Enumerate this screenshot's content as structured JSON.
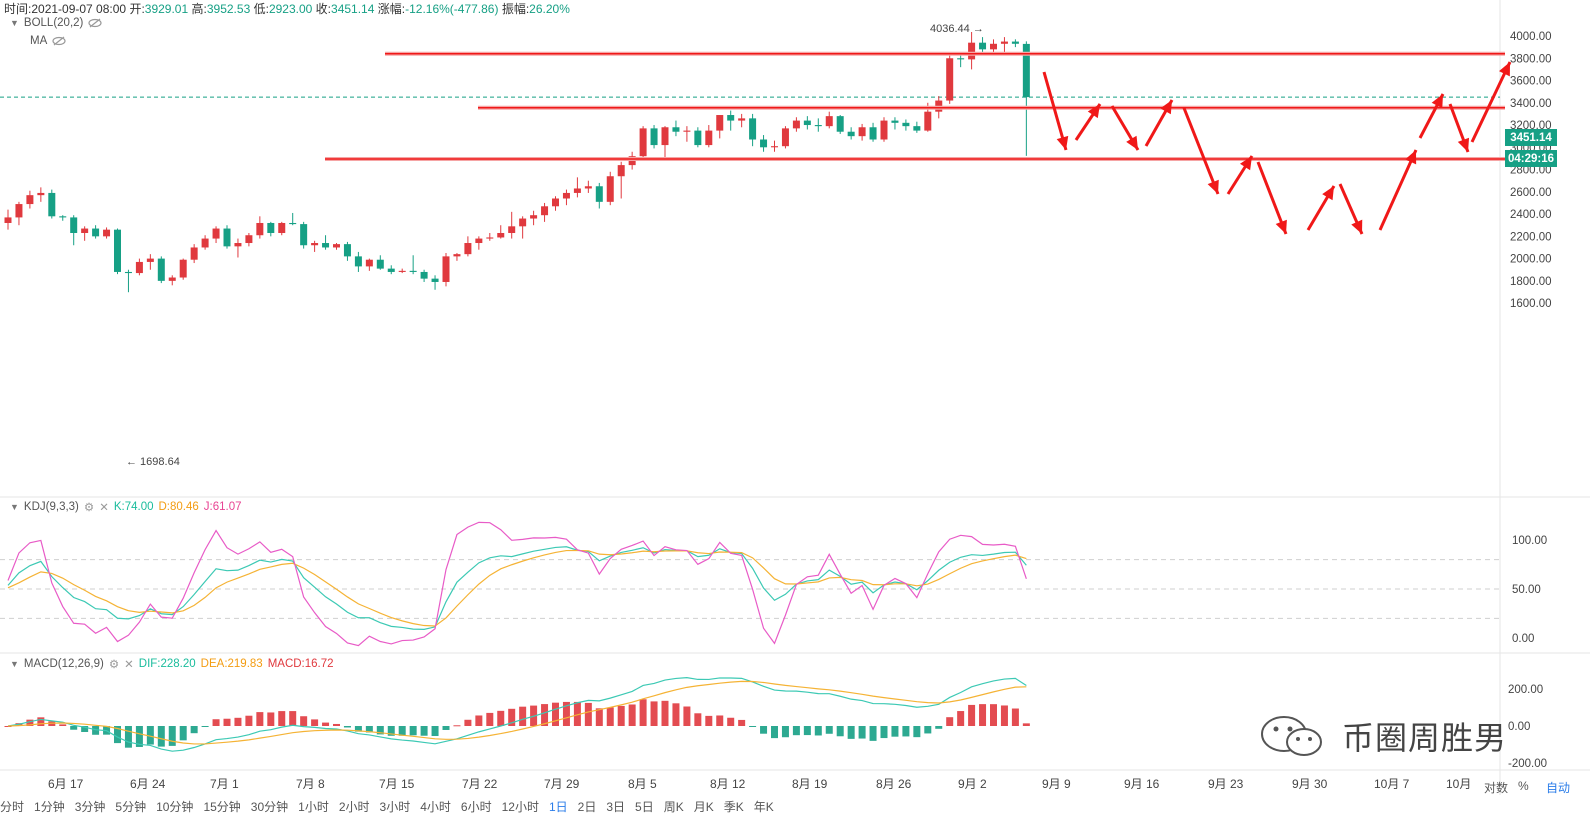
{
  "header": {
    "time_label": "时间:",
    "time_value": "2021-09-07 08:00",
    "open_label": "开:",
    "open_value": "3929.01",
    "high_label": "高:",
    "high_value": "3952.53",
    "low_label": "低:",
    "low_value": "2923.00",
    "close_label": "收:",
    "close_value": "3451.14",
    "change_label": "涨幅:",
    "change_value": "-12.16%(-477.86)",
    "amplitude_label": "振幅:",
    "amplitude_value": "26.20%"
  },
  "indicators": {
    "boll_label": "BOLL(20,2)",
    "ma_label": "MA",
    "kdj_label": "KDJ(9,3,3)",
    "kdj_k": "K:74.00",
    "kdj_d": "D:80.46",
    "kdj_j": "J:61.07",
    "macd_label": "MACD(12,26,9)",
    "macd_dif": "DIF:228.20",
    "macd_dea": "DEA:219.83",
    "macd_val": "MACD:16.72"
  },
  "price_axis": {
    "ticks": [
      "4000.00",
      "3800.00",
      "3600.00",
      "3400.00",
      "3200.00",
      "3000.00",
      "2800.00",
      "2600.00",
      "2400.00",
      "2200.00",
      "2000.00",
      "1800.00",
      "1600.00"
    ],
    "tick_values": [
      4000,
      3800,
      3600,
      3400,
      3200,
      3000,
      2800,
      2600,
      2400,
      2200,
      2000,
      1800,
      1600
    ],
    "current_price": "3451.14",
    "countdown": "04:29:16"
  },
  "kdj_axis": {
    "ticks": [
      "100.00",
      "50.00",
      "0.00"
    ],
    "tick_values": [
      100,
      50,
      0
    ]
  },
  "macd_axis": {
    "ticks": [
      "200.00",
      "0.00",
      "-200.00"
    ],
    "tick_values": [
      200,
      0,
      -200
    ]
  },
  "annotations": {
    "high_marker": "4036.44 →",
    "low_marker": "← 1698.64"
  },
  "date_axis": {
    "labels": [
      "6月 17",
      "6月 24",
      "7月 1",
      "7月 8",
      "7月 15",
      "7月 22",
      "7月 29",
      "8月 5",
      "8月 12",
      "8月 19",
      "8月 26",
      "9月 2",
      "9月 9",
      "9月 16",
      "9月 23",
      "9月 30",
      "10月 7",
      "10月"
    ]
  },
  "bottom_tabs": [
    "分时",
    "1分钟",
    "3分钟",
    "5分钟",
    "10分钟",
    "15分钟",
    "30分钟",
    "1小时",
    "2小时",
    "3小时",
    "4小时",
    "6小时",
    "12小时",
    "1日",
    "2日",
    "3日",
    "5日",
    "周K",
    "月K",
    "季K",
    "年K"
  ],
  "bottom_active_tab": "1日",
  "right_controls": {
    "log": "对数",
    "percent": "%",
    "auto": "自动"
  },
  "watermark": {
    "text": "币圈周胜男"
  },
  "colors": {
    "up": "#e0393e",
    "down": "#16a085",
    "kdj_k": "#3cc9b4",
    "kdj_d": "#f5b335",
    "kdj_j": "#e85bc7",
    "annotation": "#f01818"
  },
  "chart_data": {
    "type": "candlestick",
    "candles": [
      {
        "o": 2320,
        "h": 2440,
        "l": 2260,
        "c": 2370
      },
      {
        "o": 2370,
        "h": 2510,
        "l": 2300,
        "c": 2490
      },
      {
        "o": 2490,
        "h": 2610,
        "l": 2450,
        "c": 2570
      },
      {
        "o": 2570,
        "h": 2640,
        "l": 2510,
        "c": 2590
      },
      {
        "o": 2590,
        "h": 2620,
        "l": 2360,
        "c": 2380
      },
      {
        "o": 2380,
        "h": 2390,
        "l": 2340,
        "c": 2370
      },
      {
        "o": 2370,
        "h": 2390,
        "l": 2120,
        "c": 2230
      },
      {
        "o": 2230,
        "h": 2290,
        "l": 2160,
        "c": 2270
      },
      {
        "o": 2270,
        "h": 2300,
        "l": 2180,
        "c": 2200
      },
      {
        "o": 2200,
        "h": 2280,
        "l": 2180,
        "c": 2260
      },
      {
        "o": 2260,
        "h": 2270,
        "l": 1860,
        "c": 1880
      },
      {
        "o": 1880,
        "h": 1900,
        "l": 1698,
        "c": 1870
      },
      {
        "o": 1870,
        "h": 2000,
        "l": 1850,
        "c": 1970
      },
      {
        "o": 1970,
        "h": 2040,
        "l": 1900,
        "c": 2000
      },
      {
        "o": 2000,
        "h": 2020,
        "l": 1780,
        "c": 1800
      },
      {
        "o": 1800,
        "h": 1850,
        "l": 1760,
        "c": 1830
      },
      {
        "o": 1830,
        "h": 2000,
        "l": 1810,
        "c": 1990
      },
      {
        "o": 1990,
        "h": 2130,
        "l": 1960,
        "c": 2100
      },
      {
        "o": 2100,
        "h": 2210,
        "l": 2080,
        "c": 2180
      },
      {
        "o": 2180,
        "h": 2290,
        "l": 2140,
        "c": 2270
      },
      {
        "o": 2270,
        "h": 2300,
        "l": 2090,
        "c": 2110
      },
      {
        "o": 2110,
        "h": 2180,
        "l": 2010,
        "c": 2140
      },
      {
        "o": 2140,
        "h": 2230,
        "l": 2110,
        "c": 2210
      },
      {
        "o": 2210,
        "h": 2380,
        "l": 2180,
        "c": 2320
      },
      {
        "o": 2320,
        "h": 2330,
        "l": 2200,
        "c": 2230
      },
      {
        "o": 2230,
        "h": 2330,
        "l": 2210,
        "c": 2320
      },
      {
        "o": 2320,
        "h": 2410,
        "l": 2300,
        "c": 2310
      },
      {
        "o": 2310,
        "h": 2330,
        "l": 2090,
        "c": 2120
      },
      {
        "o": 2120,
        "h": 2160,
        "l": 2060,
        "c": 2140
      },
      {
        "o": 2140,
        "h": 2210,
        "l": 2080,
        "c": 2100
      },
      {
        "o": 2100,
        "h": 2140,
        "l": 2080,
        "c": 2130
      },
      {
        "o": 2130,
        "h": 2150,
        "l": 1980,
        "c": 2020
      },
      {
        "o": 2020,
        "h": 2060,
        "l": 1880,
        "c": 1930
      },
      {
        "o": 1930,
        "h": 2000,
        "l": 1890,
        "c": 1990
      },
      {
        "o": 1990,
        "h": 2030,
        "l": 1900,
        "c": 1910
      },
      {
        "o": 1910,
        "h": 1940,
        "l": 1860,
        "c": 1880
      },
      {
        "o": 1880,
        "h": 1910,
        "l": 1870,
        "c": 1890
      },
      {
        "o": 1890,
        "h": 2030,
        "l": 1860,
        "c": 1880
      },
      {
        "o": 1880,
        "h": 1900,
        "l": 1790,
        "c": 1820
      },
      {
        "o": 1820,
        "h": 1850,
        "l": 1720,
        "c": 1790
      },
      {
        "o": 1790,
        "h": 2050,
        "l": 1750,
        "c": 2020
      },
      {
        "o": 2020,
        "h": 2050,
        "l": 1980,
        "c": 2040
      },
      {
        "o": 2040,
        "h": 2200,
        "l": 2020,
        "c": 2140
      },
      {
        "o": 2140,
        "h": 2200,
        "l": 2080,
        "c": 2180
      },
      {
        "o": 2180,
        "h": 2230,
        "l": 2160,
        "c": 2190
      },
      {
        "o": 2190,
        "h": 2300,
        "l": 2180,
        "c": 2230
      },
      {
        "o": 2230,
        "h": 2420,
        "l": 2180,
        "c": 2290
      },
      {
        "o": 2290,
        "h": 2380,
        "l": 2180,
        "c": 2360
      },
      {
        "o": 2360,
        "h": 2430,
        "l": 2300,
        "c": 2390
      },
      {
        "o": 2390,
        "h": 2500,
        "l": 2330,
        "c": 2470
      },
      {
        "o": 2470,
        "h": 2560,
        "l": 2430,
        "c": 2540
      },
      {
        "o": 2540,
        "h": 2620,
        "l": 2480,
        "c": 2590
      },
      {
        "o": 2590,
        "h": 2730,
        "l": 2550,
        "c": 2630
      },
      {
        "o": 2630,
        "h": 2700,
        "l": 2590,
        "c": 2650
      },
      {
        "o": 2650,
        "h": 2680,
        "l": 2450,
        "c": 2510
      },
      {
        "o": 2510,
        "h": 2780,
        "l": 2480,
        "c": 2740
      },
      {
        "o": 2740,
        "h": 2870,
        "l": 2540,
        "c": 2840
      },
      {
        "o": 2840,
        "h": 2960,
        "l": 2800,
        "c": 2920
      },
      {
        "o": 2920,
        "h": 3190,
        "l": 2900,
        "c": 3170
      },
      {
        "o": 3170,
        "h": 3200,
        "l": 2990,
        "c": 3020
      },
      {
        "o": 3020,
        "h": 3190,
        "l": 2890,
        "c": 3180
      },
      {
        "o": 3180,
        "h": 3240,
        "l": 3100,
        "c": 3140
      },
      {
        "o": 3140,
        "h": 3190,
        "l": 3050,
        "c": 3150
      },
      {
        "o": 3150,
        "h": 3180,
        "l": 3000,
        "c": 3020
      },
      {
        "o": 3020,
        "h": 3200,
        "l": 3000,
        "c": 3150
      },
      {
        "o": 3150,
        "h": 3270,
        "l": 3080,
        "c": 3290
      },
      {
        "o": 3290,
        "h": 3330,
        "l": 3150,
        "c": 3240
      },
      {
        "o": 3240,
        "h": 3300,
        "l": 3180,
        "c": 3260
      },
      {
        "o": 3260,
        "h": 3300,
        "l": 3010,
        "c": 3070
      },
      {
        "o": 3070,
        "h": 3110,
        "l": 2960,
        "c": 3000
      },
      {
        "o": 3000,
        "h": 3060,
        "l": 2960,
        "c": 3010
      },
      {
        "o": 3010,
        "h": 3190,
        "l": 2990,
        "c": 3170
      },
      {
        "o": 3170,
        "h": 3270,
        "l": 3140,
        "c": 3240
      },
      {
        "o": 3240,
        "h": 3280,
        "l": 3160,
        "c": 3200
      },
      {
        "o": 3200,
        "h": 3260,
        "l": 3140,
        "c": 3190
      },
      {
        "o": 3190,
        "h": 3320,
        "l": 3170,
        "c": 3280
      },
      {
        "o": 3280,
        "h": 3290,
        "l": 3120,
        "c": 3140
      },
      {
        "o": 3140,
        "h": 3180,
        "l": 3070,
        "c": 3100
      },
      {
        "o": 3100,
        "h": 3210,
        "l": 3060,
        "c": 3180
      },
      {
        "o": 3180,
        "h": 3220,
        "l": 3050,
        "c": 3070
      },
      {
        "o": 3070,
        "h": 3270,
        "l": 3050,
        "c": 3240
      },
      {
        "o": 3240,
        "h": 3270,
        "l": 3160,
        "c": 3220
      },
      {
        "o": 3220,
        "h": 3250,
        "l": 3150,
        "c": 3190
      },
      {
        "o": 3190,
        "h": 3230,
        "l": 3130,
        "c": 3150
      },
      {
        "o": 3150,
        "h": 3400,
        "l": 3140,
        "c": 3320
      },
      {
        "o": 3320,
        "h": 3460,
        "l": 3260,
        "c": 3420
      },
      {
        "o": 3420,
        "h": 3850,
        "l": 3390,
        "c": 3800
      },
      {
        "o": 3800,
        "h": 3840,
        "l": 3720,
        "c": 3790
      },
      {
        "o": 3790,
        "h": 4036,
        "l": 3700,
        "c": 3940
      },
      {
        "o": 3940,
        "h": 3990,
        "l": 3830,
        "c": 3880
      },
      {
        "o": 3880,
        "h": 3970,
        "l": 3850,
        "c": 3930
      },
      {
        "o": 3930,
        "h": 3990,
        "l": 3840,
        "c": 3950
      },
      {
        "o": 3950,
        "h": 3970,
        "l": 3900,
        "c": 3930
      },
      {
        "o": 3929,
        "h": 3952,
        "l": 2923,
        "c": 3451
      }
    ]
  }
}
